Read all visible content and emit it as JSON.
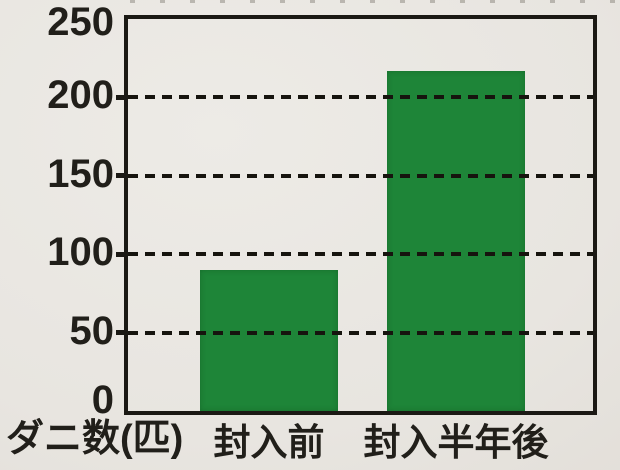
{
  "chart_data": {
    "type": "bar",
    "title": "",
    "ylabel": "ダニ数(匹)",
    "categories": [
      "封入前",
      "封入半年後"
    ],
    "category_names": [
      "before-sealing",
      "half-year-after-sealing"
    ],
    "values": [
      90,
      217
    ],
    "ylim": [
      0,
      250
    ],
    "y_ticks": [
      0,
      50,
      100,
      150,
      200,
      250
    ],
    "gridlines": [
      50,
      100,
      150,
      200
    ],
    "grid_style": "dashed-horizontal",
    "legend": null,
    "colors": {
      "bar": "#1e8538",
      "axis": "#1b1914",
      "text": "#211f1a",
      "background": "#e8e5e0"
    }
  }
}
